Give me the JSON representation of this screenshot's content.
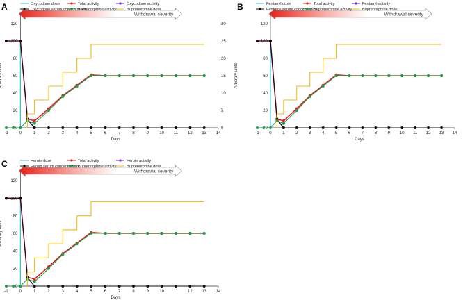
{
  "chart_data": [
    {
      "panel": "A",
      "type": "line",
      "xlabel": "Days",
      "ylabel": "Arbitrary units",
      "xlim": [
        -1,
        14
      ],
      "x_ticks": [
        "-1",
        "0",
        "1",
        "2",
        "3",
        "4",
        "5",
        "6",
        "7",
        "8",
        "9",
        "10",
        "11",
        "12",
        "13",
        "14"
      ],
      "ylim": [
        0,
        120
      ],
      "y_ticks": [
        "0",
        "20",
        "40",
        "60",
        "80",
        "100",
        "120"
      ],
      "y2lim": [
        0,
        30
      ],
      "y2_ticks": [
        "0",
        "5",
        "10",
        "15",
        "20",
        "25",
        "30"
      ],
      "annotation": "Withdrawal severity",
      "legend": [
        "Oxycodone dose",
        "Total activity",
        "Oxycodone activity",
        "Oxycodone serum concentration",
        "Buprenorphine activity",
        "Buprenorphine dose"
      ],
      "series": [
        {
          "name": "Oxycodone dose",
          "color": "#3cc0e0",
          "type": "bar",
          "x": [
            -1,
            0
          ],
          "values": [
            100,
            100
          ]
        },
        {
          "name": "Total activity",
          "color": "#e02020",
          "x": [
            -1,
            0,
            0.5,
            1,
            2,
            3,
            4,
            5,
            6,
            7,
            8,
            9,
            10,
            11,
            12,
            13
          ],
          "values": [
            100,
            100,
            10,
            8,
            22,
            37,
            49,
            61,
            60,
            60,
            60,
            60,
            60,
            60,
            60,
            60
          ]
        },
        {
          "name": "Oxycodone activity",
          "color": "#7a2ab8",
          "x": [
            -1,
            0,
            0.5,
            1
          ],
          "values": [
            100,
            100,
            9,
            0
          ]
        },
        {
          "name": "Oxycodone serum concentration",
          "color": "#111111",
          "x": [
            -1,
            0,
            0.5,
            1,
            2,
            3,
            4,
            5,
            6,
            7,
            8,
            9,
            10,
            11,
            12,
            13
          ],
          "values": [
            100,
            100,
            10,
            0,
            0,
            0,
            0,
            0,
            0,
            0,
            0,
            0,
            0,
            0,
            0,
            0
          ]
        },
        {
          "name": "Buprenorphine activity",
          "color": "#1f9a4c",
          "x": [
            -1,
            -0.5,
            0,
            0.5,
            1,
            2,
            3,
            4,
            5,
            6,
            7,
            8,
            9,
            10,
            11,
            12,
            13
          ],
          "values": [
            0,
            0,
            0,
            8,
            5,
            20,
            36,
            48,
            60,
            60,
            60,
            60,
            60,
            60,
            60,
            60,
            60
          ]
        },
        {
          "name": "Buprenorphine dose",
          "color": "#f0bc16",
          "axis": "right",
          "x": [
            0.5,
            1,
            2,
            3,
            4,
            5,
            13
          ],
          "values": [
            4,
            8,
            12,
            16,
            20,
            24,
            24
          ]
        }
      ]
    },
    {
      "panel": "B",
      "type": "line",
      "xlabel": "Days",
      "ylabel": "Arbitrary units",
      "xlim": [
        -1,
        14
      ],
      "x_ticks": [
        "-1",
        "0",
        "1",
        "2",
        "3",
        "4",
        "5",
        "6",
        "7",
        "8",
        "9",
        "10",
        "11",
        "12",
        "13",
        "14"
      ],
      "ylim": [
        0,
        120
      ],
      "y_ticks": [
        "0",
        "20",
        "40",
        "60",
        "80",
        "100",
        "120"
      ],
      "y2lim": [
        0,
        30
      ],
      "annotation": "Withdrawal severity",
      "legend": [
        "Fentanyl dose",
        "Total activity",
        "Fentanyl activity",
        "Fentanyl serum concentration",
        "Buprenorphine activity",
        "Buprenorphine dose"
      ],
      "series": [
        {
          "name": "Fentanyl dose",
          "color": "#3cc0e0",
          "type": "bar",
          "x": [
            -1,
            0
          ],
          "values": [
            100,
            100
          ]
        },
        {
          "name": "Total activity",
          "color": "#e02020",
          "x": [
            -1,
            0,
            0.5,
            1,
            2,
            3,
            4,
            5,
            6,
            7,
            8,
            9,
            10,
            11,
            12,
            13
          ],
          "values": [
            100,
            100,
            10,
            8,
            22,
            37,
            49,
            61,
            60,
            60,
            60,
            60,
            60,
            60,
            60,
            60
          ]
        },
        {
          "name": "Fentanyl activity",
          "color": "#7a2ab8",
          "x": [
            -1,
            0,
            0.5,
            1
          ],
          "values": [
            100,
            100,
            9,
            0
          ]
        },
        {
          "name": "Fentanyl serum concentration",
          "color": "#111111",
          "x": [
            -1,
            0,
            0.5,
            1,
            2,
            3,
            4,
            5,
            6,
            7,
            8,
            9,
            10,
            11,
            12,
            13
          ],
          "values": [
            100,
            100,
            10,
            0,
            0,
            0,
            0,
            0,
            0,
            0,
            0,
            0,
            0,
            0,
            0,
            0
          ]
        },
        {
          "name": "Buprenorphine activity",
          "color": "#1f9a4c",
          "x": [
            -1,
            -0.5,
            0,
            0.5,
            1,
            2,
            3,
            4,
            5,
            6,
            7,
            8,
            9,
            10,
            11,
            12,
            13
          ],
          "values": [
            0,
            0,
            0,
            8,
            5,
            20,
            36,
            48,
            60,
            60,
            60,
            60,
            60,
            60,
            60,
            60,
            60
          ]
        },
        {
          "name": "Buprenorphine dose",
          "color": "#f0bc16",
          "axis": "right",
          "x": [
            0.5,
            1,
            2,
            3,
            4,
            5,
            13
          ],
          "values": [
            4,
            8,
            12,
            16,
            20,
            24,
            24
          ]
        }
      ]
    },
    {
      "panel": "C",
      "type": "line",
      "xlabel": "Days",
      "ylabel": "Arbitrary units",
      "xlim": [
        -1,
        14
      ],
      "x_ticks": [
        "-1",
        "0",
        "1",
        "2",
        "3",
        "4",
        "5",
        "6",
        "7",
        "8",
        "9",
        "10",
        "11",
        "12",
        "13",
        "14"
      ],
      "ylim": [
        0,
        120
      ],
      "y_ticks": [
        "0",
        "20",
        "40",
        "60",
        "80",
        "100",
        "120"
      ],
      "y2lim": [
        0,
        30
      ],
      "annotation": "Withdrawal severity",
      "legend": [
        "Heroin dose",
        "Total activity",
        "Heroin activity",
        "Heroin serum concentration",
        "Buprenorphine activity",
        "Buprenorphine dose"
      ],
      "series": [
        {
          "name": "Heroin dose",
          "color": "#3cc0e0",
          "type": "bar",
          "x": [
            -1,
            0
          ],
          "values": [
            100,
            100
          ]
        },
        {
          "name": "Total activity",
          "color": "#e02020",
          "x": [
            -1,
            0,
            0.5,
            1,
            2,
            3,
            4,
            5,
            6,
            7,
            8,
            9,
            10,
            11,
            12,
            13
          ],
          "values": [
            100,
            100,
            10,
            8,
            22,
            37,
            49,
            61,
            60,
            60,
            60,
            60,
            60,
            60,
            60,
            60
          ]
        },
        {
          "name": "Heroin activity",
          "color": "#7a2ab8",
          "x": [
            -1,
            0,
            0.5,
            1
          ],
          "values": [
            100,
            100,
            9,
            0
          ]
        },
        {
          "name": "Heroin serum concentration",
          "color": "#111111",
          "x": [
            -1,
            0,
            0.5,
            1,
            2,
            3,
            4,
            5,
            6,
            7,
            8,
            9,
            10,
            11,
            12,
            13
          ],
          "values": [
            100,
            100,
            10,
            0,
            0,
            0,
            0,
            0,
            0,
            0,
            0,
            0,
            0,
            0,
            0,
            0
          ]
        },
        {
          "name": "Buprenorphine activity",
          "color": "#1f9a4c",
          "x": [
            -1,
            -0.5,
            0,
            0.5,
            1,
            2,
            3,
            4,
            5,
            6,
            7,
            8,
            9,
            10,
            11,
            12,
            13
          ],
          "values": [
            0,
            0,
            0,
            8,
            5,
            20,
            36,
            48,
            60,
            60,
            60,
            60,
            60,
            60,
            60,
            60,
            60
          ]
        },
        {
          "name": "Buprenorphine dose",
          "color": "#f0bc16",
          "axis": "right",
          "x": [
            0.5,
            1,
            2,
            3,
            4,
            5,
            13
          ],
          "values": [
            4,
            8,
            12,
            16,
            20,
            24,
            24
          ]
        }
      ]
    }
  ]
}
